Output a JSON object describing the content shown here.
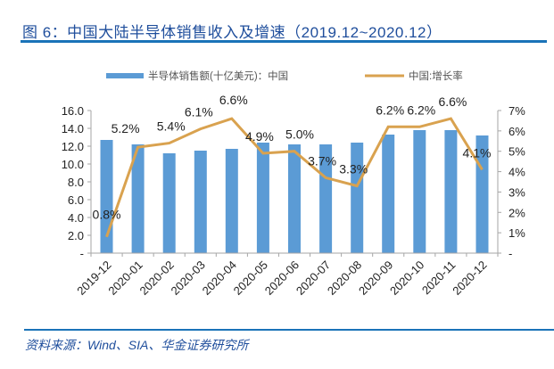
{
  "header": {
    "title": "图 6：中国大陆半导体销售收入及增速（2019.12~2020.12）"
  },
  "footer": {
    "source": "资料来源：Wind、SIA、华金证券研究所"
  },
  "colors": {
    "bar": "#5b9bd5",
    "line": "#d9a24f",
    "rule": "#1a73b8",
    "title": "#1f4e9c",
    "axis": "#a6a6a6"
  },
  "chart_data": {
    "type": "bar",
    "title": "",
    "categories": [
      "2019-12",
      "2020-01",
      "2020-02",
      "2020-03",
      "2020-04",
      "2020-05",
      "2020-06",
      "2020-07",
      "2020-08",
      "2020-09",
      "2020-10",
      "2020-11",
      "2020-12"
    ],
    "series": [
      {
        "name": "半导体销售额(十亿美元)：中国",
        "type": "bar",
        "axis": "left",
        "values": [
          12.7,
          12.2,
          11.2,
          11.5,
          11.7,
          12.4,
          12.2,
          12.2,
          12.4,
          13.3,
          13.8,
          13.8,
          13.2
        ]
      },
      {
        "name": "中国:增长率",
        "type": "line",
        "axis": "right",
        "values": [
          0.8,
          5.2,
          5.4,
          6.1,
          6.6,
          4.9,
          5.0,
          3.7,
          3.3,
          6.2,
          6.2,
          6.6,
          4.1
        ],
        "data_labels": [
          "0.8%",
          "5.2%",
          "5.4%",
          "6.1%",
          "6.6%",
          "4.9%",
          "5.0%",
          "3.7%",
          "3.3%",
          "6.2%",
          "6.2%",
          "6.6%",
          "4.1%"
        ]
      }
    ],
    "y_left": {
      "range": [
        0,
        16
      ],
      "ticks": [
        0,
        2,
        4,
        6,
        8,
        10,
        12,
        14,
        16
      ],
      "tick_labels": [
        "-",
        "2.0",
        "4.0",
        "6.0",
        "8.0",
        "10.0",
        "12.0",
        "14.0",
        "16.0"
      ]
    },
    "y_right": {
      "range": [
        0,
        7
      ],
      "ticks": [
        0,
        1,
        2,
        3,
        4,
        5,
        6,
        7
      ],
      "tick_labels": [
        "-",
        "1%",
        "2%",
        "3%",
        "4%",
        "5%",
        "6%",
        "7%"
      ]
    },
    "xlabel": "",
    "ylabel": "",
    "grid": false,
    "legend": "top"
  }
}
